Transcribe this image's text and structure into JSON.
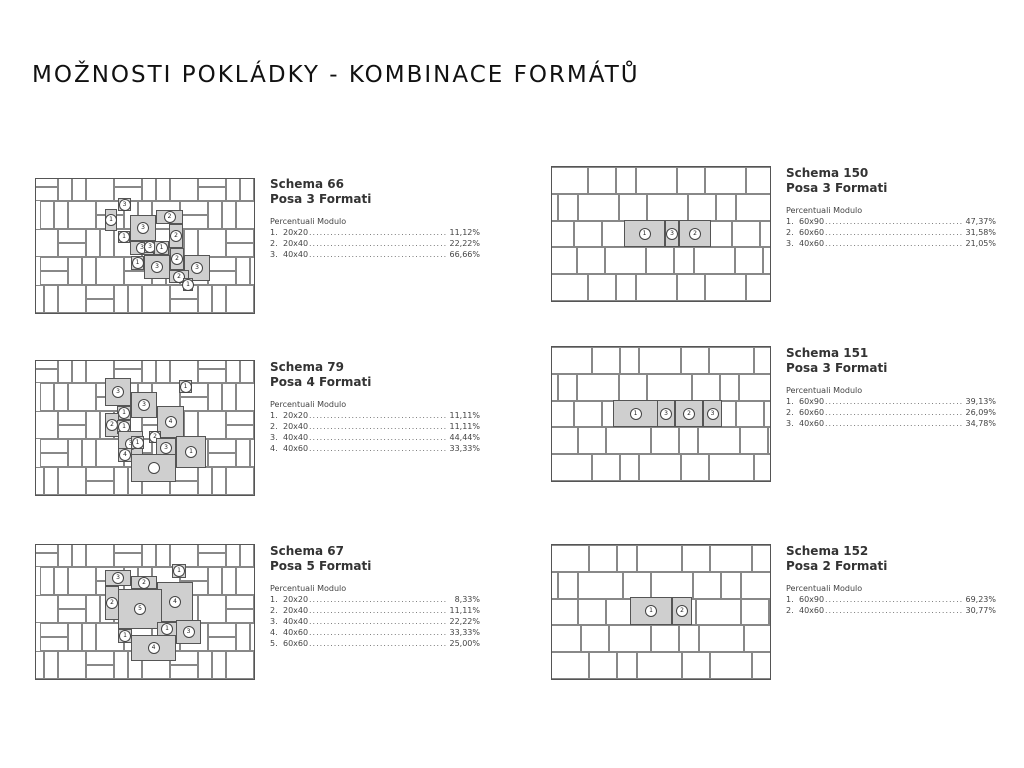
{
  "page": {
    "title": "MOŽNOSTI POKLÁDKY - KOMBINACE FORMÁTŮ"
  },
  "schemas": [
    {
      "title": "Schema 66",
      "subtitle": "Posa 3 Formati",
      "percent_label": "Percentuali Modulo",
      "items": [
        {
          "idx": "1.",
          "format": "20x20",
          "percent": "11,12%"
        },
        {
          "idx": "2.",
          "format": "20x40",
          "percent": "22,22%"
        },
        {
          "idx": "3.",
          "format": "40x40",
          "percent": "66,66%"
        }
      ]
    },
    {
      "title": "Schema 79",
      "subtitle": "Posa 4 Formati",
      "percent_label": "Percentuali Modulo",
      "items": [
        {
          "idx": "1.",
          "format": "20x20",
          "percent": "11,11%"
        },
        {
          "idx": "2.",
          "format": "20x40",
          "percent": "11,11%"
        },
        {
          "idx": "3.",
          "format": "40x40",
          "percent": "44,44%"
        },
        {
          "idx": "4.",
          "format": "40x60",
          "percent": "33,33%"
        }
      ]
    },
    {
      "title": "Schema 67",
      "subtitle": "Posa 5 Formati",
      "percent_label": "Percentuali Modulo",
      "items": [
        {
          "idx": "1.",
          "format": "20x20",
          "percent": "8,33%"
        },
        {
          "idx": "2.",
          "format": "20x40",
          "percent": "11,11%"
        },
        {
          "idx": "3.",
          "format": "40x40",
          "percent": "22,22%"
        },
        {
          "idx": "4.",
          "format": "40x60",
          "percent": "33,33%"
        },
        {
          "idx": "5.",
          "format": "60x60",
          "percent": "25,00%"
        }
      ]
    },
    {
      "title": "Schema 150",
      "subtitle": "Posa 3 Formati",
      "percent_label": "Percentuali Modulo",
      "items": [
        {
          "idx": "1.",
          "format": "60x90",
          "percent": "47,37%"
        },
        {
          "idx": "2.",
          "format": "60x60",
          "percent": "31,58%"
        },
        {
          "idx": "3.",
          "format": "40x60",
          "percent": "21,05%"
        }
      ]
    },
    {
      "title": "Schema 151",
      "subtitle": "Posa 3 Formati",
      "percent_label": "Percentuali Modulo",
      "items": [
        {
          "idx": "1.",
          "format": "60x90",
          "percent": "39,13%"
        },
        {
          "idx": "2.",
          "format": "60x60",
          "percent": "26,09%"
        },
        {
          "idx": "3.",
          "format": "40x60",
          "percent": "34,78%"
        }
      ]
    },
    {
      "title": "Schema 152",
      "subtitle": "Posa 2 Formati",
      "percent_label": "Percentuali Modulo",
      "items": [
        {
          "idx": "1.",
          "format": "60x90",
          "percent": "69,23%"
        },
        {
          "idx": "2.",
          "format": "40x60",
          "percent": "30,77%"
        }
      ]
    }
  ],
  "diagram_labels": {
    "d66": [
      "3",
      "1",
      "3",
      "2",
      "2",
      "1",
      "3",
      "3",
      "1",
      "2",
      "3",
      "1",
      "3",
      "2",
      "1"
    ],
    "d79": [
      "1",
      "3",
      "3",
      "1",
      "4",
      "2",
      "1",
      "3",
      "2",
      "1",
      "3",
      "1",
      "4"
    ],
    "d67": [
      "1",
      "3",
      "2",
      "4",
      "2",
      "5",
      "1",
      "3",
      "1",
      "4"
    ],
    "d150": [
      "1",
      "3",
      "2"
    ],
    "d151": [
      "1",
      "3",
      "2",
      "3"
    ],
    "d152": [
      "1",
      "2"
    ]
  }
}
